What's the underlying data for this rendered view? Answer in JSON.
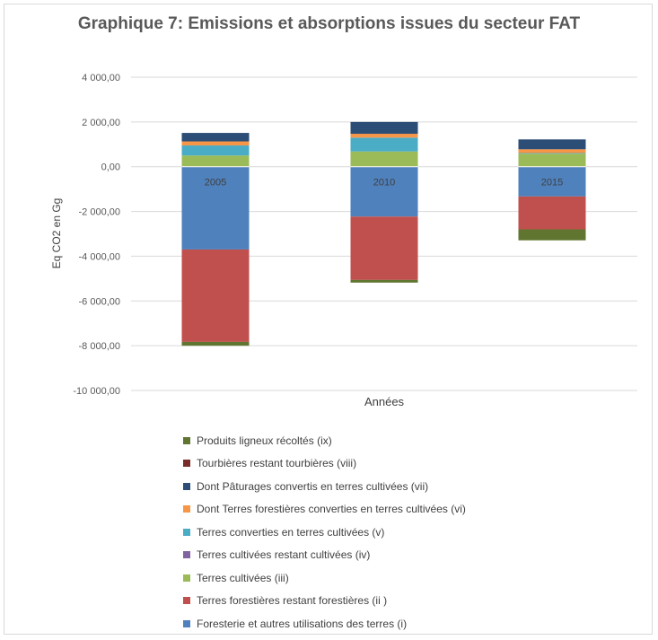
{
  "chart_data": {
    "type": "bar",
    "stacked": true,
    "title": "Graphique 7: Emissions et absorptions issues du secteur FAT",
    "xlabel": "Années",
    "ylabel": "Eq CO2 en Gg",
    "ylim": [
      -10000,
      4000
    ],
    "yticks": [
      4000,
      2000,
      0,
      -2000,
      -4000,
      -6000,
      -8000,
      -10000
    ],
    "ytick_labels": [
      "4 000,00",
      "2 000,00",
      "0,00",
      "-2 000,00",
      "-4 000,00",
      "-6 000,00",
      "-8 000,00",
      "-10 000,00"
    ],
    "grid": true,
    "legend_position": "bottom",
    "categories": [
      "2005",
      "2010",
      "2015"
    ],
    "series": [
      {
        "name": "Foresterie et autres utilisations des terres (i)",
        "color": "#4f81bd",
        "values": [
          -3700,
          -2230,
          -1330
        ]
      },
      {
        "name": "Terres forestières restant forestières (ii )",
        "color": "#c0504d",
        "values": [
          -4130,
          -2830,
          -1470
        ]
      },
      {
        "name": "Terres cultivées (iii)",
        "color": "#9bbb59",
        "values": [
          500,
          680,
          580
        ]
      },
      {
        "name": "Terres cultivées restant cultivées (iv)",
        "color": "#8064a2",
        "values": [
          0,
          0,
          0
        ]
      },
      {
        "name": "Terres converties en terres cultivées (v)",
        "color": "#4bacc6",
        "values": [
          450,
          620,
          30
        ]
      },
      {
        "name": "Dont Terres forestières converties en terres cultivées (vi)",
        "color": "#f79646",
        "values": [
          180,
          170,
          170
        ]
      },
      {
        "name": "Dont Pâturages convertis en terres cultivées (vii)",
        "color": "#2c4d75",
        "values": [
          380,
          530,
          440
        ]
      },
      {
        "name": "Tourbières restant tourbières (viii)",
        "color": "#772c2a",
        "values": [
          0,
          0,
          0
        ]
      },
      {
        "name": "Produits ligneux récoltés (ix)",
        "color": "#5f7530",
        "values": [
          -170,
          -120,
          -490
        ]
      }
    ],
    "legend_order": [
      8,
      7,
      6,
      5,
      4,
      3,
      2,
      1,
      0
    ]
  }
}
